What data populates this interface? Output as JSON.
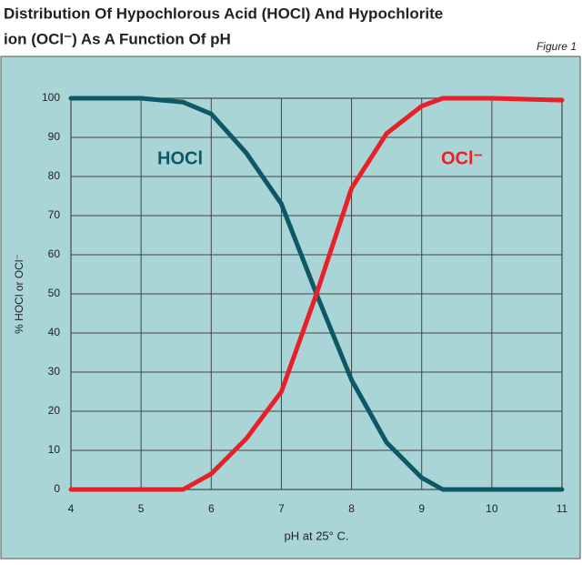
{
  "chart_data": {
    "type": "line",
    "title": [
      "Distribution Of Hypochlorous Acid (HOCl) And Hypochlorite",
      "ion (OCl⁻) As A Function Of pH"
    ],
    "figure_label": "Figure 1",
    "x_label": "pH at 25° C.",
    "y_label": "% HOCl or OCl⁻",
    "x": [
      4,
      5,
      5.6,
      6,
      6.5,
      7,
      7.5,
      8,
      8.5,
      9,
      9.3,
      10,
      11
    ],
    "series": [
      {
        "name": "HOCl",
        "color": "#0e5866",
        "values": [
          100,
          100,
          99,
          96,
          86,
          73,
          50,
          28,
          12,
          3,
          0,
          0,
          0
        ]
      },
      {
        "name": "OCl⁻",
        "color": "#e8202a",
        "values": [
          0,
          0,
          0,
          4,
          13,
          25,
          50,
          77,
          91,
          98,
          100,
          100,
          99.5
        ]
      }
    ],
    "xlim": [
      4,
      11
    ],
    "xticks": [
      4,
      5,
      6,
      7,
      8,
      9,
      10,
      11
    ],
    "ylim": [
      0,
      100
    ],
    "yticks": [
      0,
      10,
      20,
      30,
      40,
      50,
      60,
      70,
      80,
      90,
      100
    ],
    "grid": true,
    "background": "#a9d5d7"
  }
}
